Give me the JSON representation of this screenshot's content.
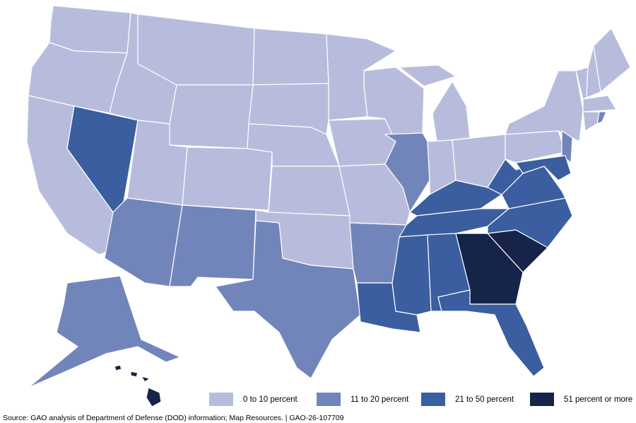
{
  "legend": [
    {
      "label": "0 to 10 percent",
      "color": "#b8bcdc"
    },
    {
      "label": "11 to 20 percent",
      "color": "#7285bb"
    },
    {
      "label": "21 to 50 percent",
      "color": "#3a5e9f"
    },
    {
      "label": "51 percent or more",
      "color": "#16244a"
    }
  ],
  "source": "Source: GAO analysis of Department of Defense (DOD) information; Map Resources.  |  GAO-26-107709"
}
